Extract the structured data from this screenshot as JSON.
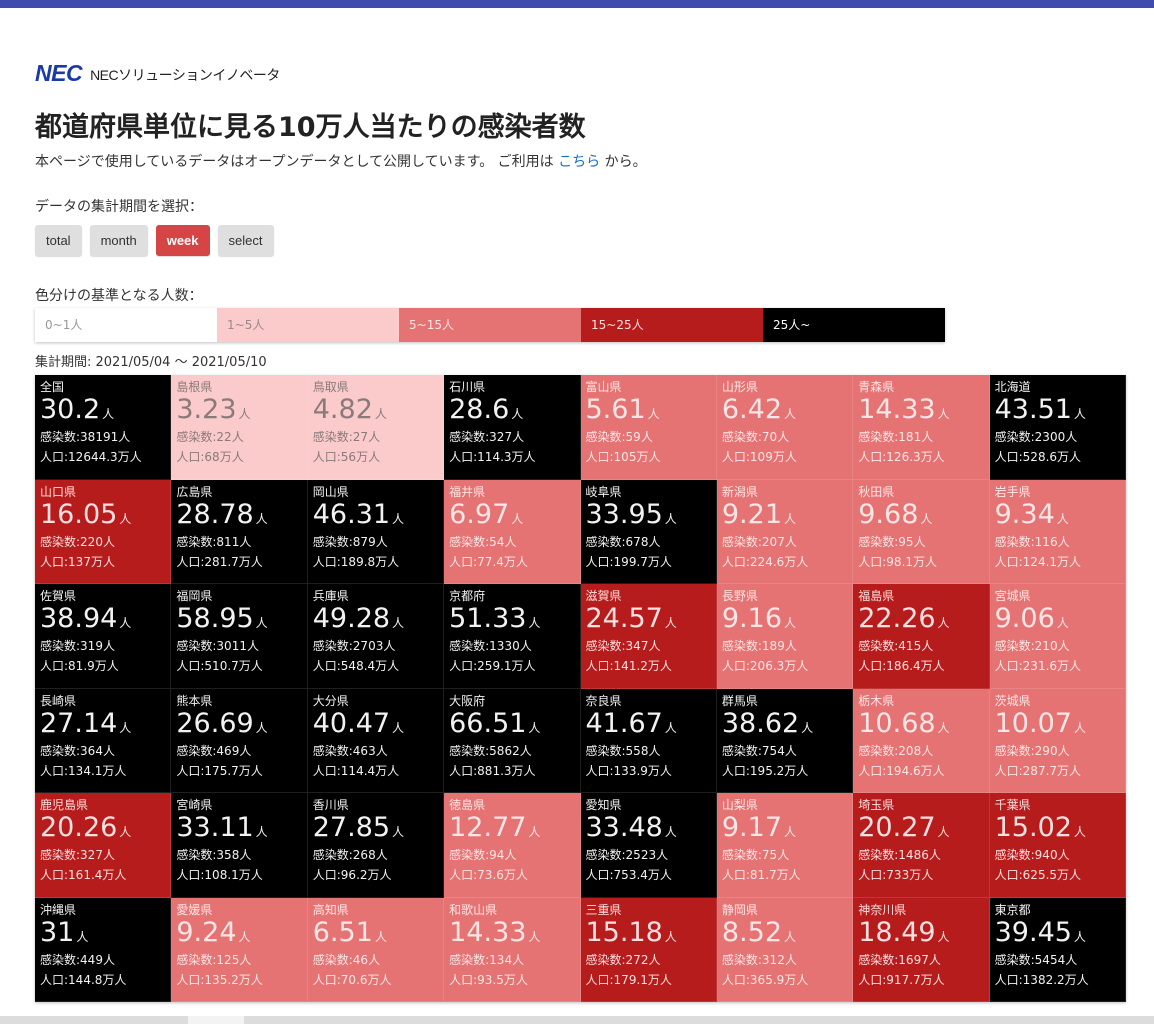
{
  "logo": {
    "brand": "NEC",
    "sub": "NECソリューションイノベータ"
  },
  "title": "都道府県単位に見る10万人当たりの感染者数",
  "subtitle": {
    "before": "本ページで使用しているデータはオープンデータとして公開しています。 ご利用は",
    "link": "こちら",
    "after": "から。"
  },
  "period": {
    "label": "データの集計期間を選択：",
    "buttons": [
      "total",
      "month",
      "week",
      "select"
    ],
    "selected": "week"
  },
  "scale": {
    "label": "色分けの基準となる人数：",
    "items": [
      {
        "label": "0~1人",
        "bg": "#ffffff",
        "fg": "#999999"
      },
      {
        "label": "1~5人",
        "bg": "#fbcaca",
        "fg": "#9a8a8a"
      },
      {
        "label": "5~15人",
        "bg": "#e57373",
        "fg": "#ffe6e6"
      },
      {
        "label": "15~25人",
        "bg": "#b71c1c",
        "fg": "#ffe0e0"
      },
      {
        "label": "25人~",
        "bg": "#000000",
        "fg": "#ffffff"
      }
    ]
  },
  "range_text": "集計期間: 2021/05/04 ～ 2021/05/10",
  "unit": "人",
  "cells": [
    {
      "pref": "全国",
      "rate": "30.2",
      "infected": "感染数:38191人",
      "population": "人口:12644.3万人",
      "level": 4
    },
    {
      "pref": "島根県",
      "rate": "3.23",
      "infected": "感染数:22人",
      "population": "人口:68万人",
      "level": 1
    },
    {
      "pref": "鳥取県",
      "rate": "4.82",
      "infected": "感染数:27人",
      "population": "人口:56万人",
      "level": 1
    },
    {
      "pref": "石川県",
      "rate": "28.6",
      "infected": "感染数:327人",
      "population": "人口:114.3万人",
      "level": 4
    },
    {
      "pref": "富山県",
      "rate": "5.61",
      "infected": "感染数:59人",
      "population": "人口:105万人",
      "level": 2
    },
    {
      "pref": "山形県",
      "rate": "6.42",
      "infected": "感染数:70人",
      "population": "人口:109万人",
      "level": 2
    },
    {
      "pref": "青森県",
      "rate": "14.33",
      "infected": "感染数:181人",
      "population": "人口:126.3万人",
      "level": 2
    },
    {
      "pref": "北海道",
      "rate": "43.51",
      "infected": "感染数:2300人",
      "population": "人口:528.6万人",
      "level": 4
    },
    {
      "pref": "山口県",
      "rate": "16.05",
      "infected": "感染数:220人",
      "population": "人口:137万人",
      "level": 3
    },
    {
      "pref": "広島県",
      "rate": "28.78",
      "infected": "感染数:811人",
      "population": "人口:281.7万人",
      "level": 4
    },
    {
      "pref": "岡山県",
      "rate": "46.31",
      "infected": "感染数:879人",
      "population": "人口:189.8万人",
      "level": 4
    },
    {
      "pref": "福井県",
      "rate": "6.97",
      "infected": "感染数:54人",
      "population": "人口:77.4万人",
      "level": 2
    },
    {
      "pref": "岐阜県",
      "rate": "33.95",
      "infected": "感染数:678人",
      "population": "人口:199.7万人",
      "level": 4
    },
    {
      "pref": "新潟県",
      "rate": "9.21",
      "infected": "感染数:207人",
      "population": "人口:224.6万人",
      "level": 2
    },
    {
      "pref": "秋田県",
      "rate": "9.68",
      "infected": "感染数:95人",
      "population": "人口:98.1万人",
      "level": 2
    },
    {
      "pref": "岩手県",
      "rate": "9.34",
      "infected": "感染数:116人",
      "population": "人口:124.1万人",
      "level": 2
    },
    {
      "pref": "佐賀県",
      "rate": "38.94",
      "infected": "感染数:319人",
      "population": "人口:81.9万人",
      "level": 4
    },
    {
      "pref": "福岡県",
      "rate": "58.95",
      "infected": "感染数:3011人",
      "population": "人口:510.7万人",
      "level": 4
    },
    {
      "pref": "兵庫県",
      "rate": "49.28",
      "infected": "感染数:2703人",
      "population": "人口:548.4万人",
      "level": 4
    },
    {
      "pref": "京都府",
      "rate": "51.33",
      "infected": "感染数:1330人",
      "population": "人口:259.1万人",
      "level": 4
    },
    {
      "pref": "滋賀県",
      "rate": "24.57",
      "infected": "感染数:347人",
      "population": "人口:141.2万人",
      "level": 3
    },
    {
      "pref": "長野県",
      "rate": "9.16",
      "infected": "感染数:189人",
      "population": "人口:206.3万人",
      "level": 2
    },
    {
      "pref": "福島県",
      "rate": "22.26",
      "infected": "感染数:415人",
      "population": "人口:186.4万人",
      "level": 3
    },
    {
      "pref": "宮城県",
      "rate": "9.06",
      "infected": "感染数:210人",
      "population": "人口:231.6万人",
      "level": 2
    },
    {
      "pref": "長崎県",
      "rate": "27.14",
      "infected": "感染数:364人",
      "population": "人口:134.1万人",
      "level": 4
    },
    {
      "pref": "熊本県",
      "rate": "26.69",
      "infected": "感染数:469人",
      "population": "人口:175.7万人",
      "level": 4
    },
    {
      "pref": "大分県",
      "rate": "40.47",
      "infected": "感染数:463人",
      "population": "人口:114.4万人",
      "level": 4
    },
    {
      "pref": "大阪府",
      "rate": "66.51",
      "infected": "感染数:5862人",
      "population": "人口:881.3万人",
      "level": 4
    },
    {
      "pref": "奈良県",
      "rate": "41.67",
      "infected": "感染数:558人",
      "population": "人口:133.9万人",
      "level": 4
    },
    {
      "pref": "群馬県",
      "rate": "38.62",
      "infected": "感染数:754人",
      "population": "人口:195.2万人",
      "level": 4
    },
    {
      "pref": "栃木県",
      "rate": "10.68",
      "infected": "感染数:208人",
      "population": "人口:194.6万人",
      "level": 2
    },
    {
      "pref": "茨城県",
      "rate": "10.07",
      "infected": "感染数:290人",
      "population": "人口:287.7万人",
      "level": 2
    },
    {
      "pref": "鹿児島県",
      "rate": "20.26",
      "infected": "感染数:327人",
      "population": "人口:161.4万人",
      "level": 3
    },
    {
      "pref": "宮崎県",
      "rate": "33.11",
      "infected": "感染数:358人",
      "population": "人口:108.1万人",
      "level": 4
    },
    {
      "pref": "香川県",
      "rate": "27.85",
      "infected": "感染数:268人",
      "population": "人口:96.2万人",
      "level": 4
    },
    {
      "pref": "徳島県",
      "rate": "12.77",
      "infected": "感染数:94人",
      "population": "人口:73.6万人",
      "level": 2
    },
    {
      "pref": "愛知県",
      "rate": "33.48",
      "infected": "感染数:2523人",
      "population": "人口:753.4万人",
      "level": 4
    },
    {
      "pref": "山梨県",
      "rate": "9.17",
      "infected": "感染数:75人",
      "population": "人口:81.7万人",
      "level": 2
    },
    {
      "pref": "埼玉県",
      "rate": "20.27",
      "infected": "感染数:1486人",
      "population": "人口:733万人",
      "level": 3
    },
    {
      "pref": "千葉県",
      "rate": "15.02",
      "infected": "感染数:940人",
      "population": "人口:625.5万人",
      "level": 3
    },
    {
      "pref": "沖縄県",
      "rate": "31",
      "infected": "感染数:449人",
      "population": "人口:144.8万人",
      "level": 4
    },
    {
      "pref": "愛媛県",
      "rate": "9.24",
      "infected": "感染数:125人",
      "population": "人口:135.2万人",
      "level": 2
    },
    {
      "pref": "高知県",
      "rate": "6.51",
      "infected": "感染数:46人",
      "population": "人口:70.6万人",
      "level": 2
    },
    {
      "pref": "和歌山県",
      "rate": "14.33",
      "infected": "感染数:134人",
      "population": "人口:93.5万人",
      "level": 2
    },
    {
      "pref": "三重県",
      "rate": "15.18",
      "infected": "感染数:272人",
      "population": "人口:179.1万人",
      "level": 3
    },
    {
      "pref": "静岡県",
      "rate": "8.52",
      "infected": "感染数:312人",
      "population": "人口:365.9万人",
      "level": 2
    },
    {
      "pref": "神奈川県",
      "rate": "18.49",
      "infected": "感染数:1697人",
      "population": "人口:917.7万人",
      "level": 3
    },
    {
      "pref": "東京都",
      "rate": "39.45",
      "infected": "感染数:5454人",
      "population": "人口:1382.2万人",
      "level": 4
    }
  ]
}
